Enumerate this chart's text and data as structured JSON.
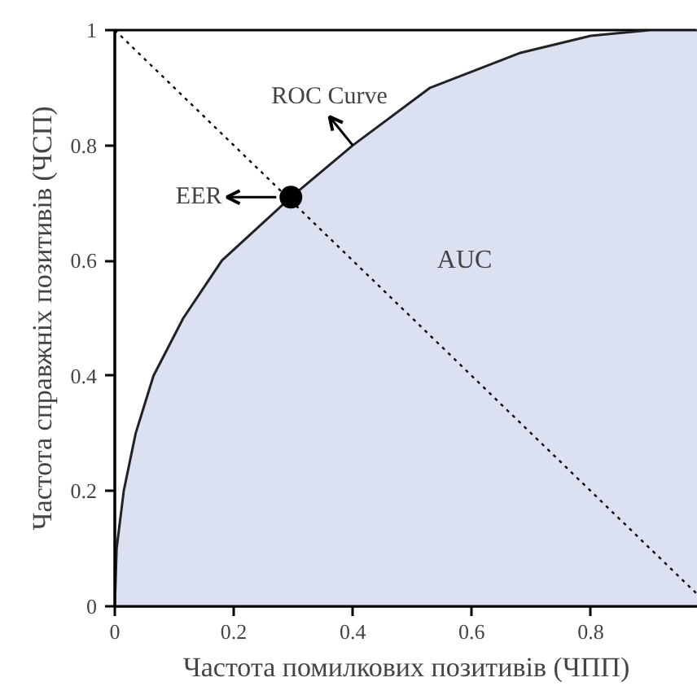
{
  "chart_data": {
    "type": "area",
    "xlabel": "Частота помилкових позитивів (ЧПП)",
    "ylabel": "Частота справжніх позитивів (ЧСП)",
    "xlim": [
      0,
      0.98
    ],
    "ylim": [
      0,
      1
    ],
    "xticks": [
      0,
      0.2,
      0.4,
      0.6,
      0.8
    ],
    "yticks": [
      0,
      0.2,
      0.4,
      0.6,
      0.8,
      1
    ],
    "grid": false,
    "series": [
      {
        "color": "#dbe1f0",
        "x": [
          0,
          0.003,
          0.015,
          0.035,
          0.065,
          0.115,
          0.18,
          0.296,
          0.4,
          0.53,
          0.68,
          0.8,
          0.9,
          0.98
        ],
        "values": [
          0,
          0.1,
          0.2,
          0.3,
          0.4,
          0.5,
          0.6,
          0.71,
          0.8,
          0.9,
          0.96,
          0.99,
          1.0,
          1.0
        ]
      },
      {
        "type": "line",
        "color": "#000000",
        "line_style": "dotted",
        "x": [
          0,
          0.98
        ],
        "values": [
          1,
          0.02
        ]
      },
      {
        "type": "scatter",
        "color": "#000000",
        "marker": "circle",
        "x": [
          0.296
        ],
        "values": [
          0.71
        ]
      }
    ],
    "annotations": [
      {
        "text": "EER",
        "x": 0.296,
        "y": 0.71
      },
      {
        "text": "ROC Curve",
        "x": 0.4,
        "y": 0.8
      },
      "AUC"
    ]
  }
}
